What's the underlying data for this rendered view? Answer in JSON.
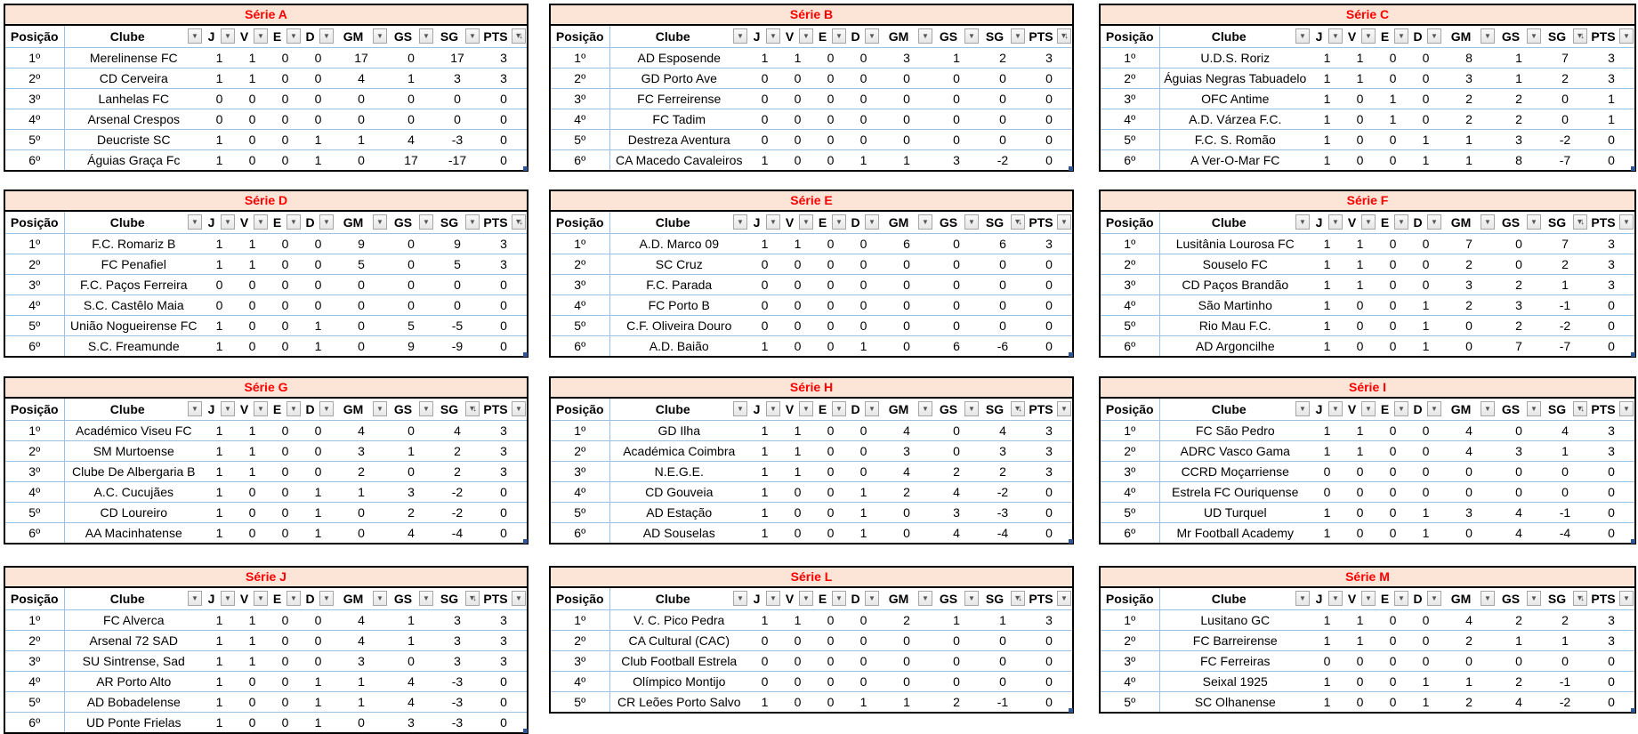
{
  "columns": [
    "Posição",
    "Clube",
    "J",
    "V",
    "E",
    "D",
    "GM",
    "GS",
    "SG",
    "PTS"
  ],
  "colors": {
    "title_bg": "#fce4d6",
    "title_text": "#ff0000",
    "grid": "#9bc2e6"
  },
  "icons": {
    "filter": "dropdown-arrow-icon",
    "sorted": "sort-descending-filter-icon"
  },
  "series": [
    {
      "title": "Série A",
      "sorted_column": "PTS",
      "rows": [
        [
          "1º",
          "Merelinense FC",
          1,
          1,
          0,
          0,
          17,
          0,
          17,
          3
        ],
        [
          "2º",
          "CD Cerveira",
          1,
          1,
          0,
          0,
          4,
          1,
          3,
          3
        ],
        [
          "3º",
          "Lanhelas FC",
          0,
          0,
          0,
          0,
          0,
          0,
          0,
          0
        ],
        [
          "4º",
          "Arsenal Crespos",
          0,
          0,
          0,
          0,
          0,
          0,
          0,
          0
        ],
        [
          "5º",
          "Deucriste SC",
          1,
          0,
          0,
          1,
          1,
          4,
          -3,
          0
        ],
        [
          "6º",
          "Águias Graça Fc",
          1,
          0,
          0,
          1,
          0,
          17,
          -17,
          0
        ]
      ]
    },
    {
      "title": "Série B",
      "sorted_column": "PTS",
      "rows": [
        [
          "1º",
          "AD Esposende",
          1,
          1,
          0,
          0,
          3,
          1,
          2,
          3
        ],
        [
          "2º",
          "GD Porto Ave",
          0,
          0,
          0,
          0,
          0,
          0,
          0,
          0
        ],
        [
          "3º",
          "FC Ferreirense",
          0,
          0,
          0,
          0,
          0,
          0,
          0,
          0
        ],
        [
          "4º",
          "FC Tadim",
          0,
          0,
          0,
          0,
          0,
          0,
          0,
          0
        ],
        [
          "5º",
          "Destreza Aventura",
          0,
          0,
          0,
          0,
          0,
          0,
          0,
          0
        ],
        [
          "6º",
          "CA Macedo Cavaleiros",
          1,
          0,
          0,
          1,
          1,
          3,
          -2,
          0
        ]
      ]
    },
    {
      "title": "Série C",
      "sorted_column": "SG",
      "rows": [
        [
          "1º",
          "U.D.S. Roriz",
          1,
          1,
          0,
          0,
          8,
          1,
          7,
          3
        ],
        [
          "2º",
          "Águias Negras Tabuadelo",
          1,
          1,
          0,
          0,
          3,
          1,
          2,
          3
        ],
        [
          "3º",
          "OFC Antime",
          1,
          0,
          1,
          0,
          2,
          2,
          0,
          1
        ],
        [
          "4º",
          "A.D. Várzea F.C.",
          1,
          0,
          1,
          0,
          2,
          2,
          0,
          1
        ],
        [
          "5º",
          "F.C. S. Romão",
          1,
          0,
          0,
          1,
          1,
          3,
          -2,
          0
        ],
        [
          "6º",
          "A Ver-O-Mar FC",
          1,
          0,
          0,
          1,
          1,
          8,
          -7,
          0
        ]
      ]
    },
    {
      "title": "Série D",
      "sorted_column": "PTS",
      "rows": [
        [
          "1º",
          "F.C. Romariz B",
          1,
          1,
          0,
          0,
          9,
          0,
          9,
          3
        ],
        [
          "2º",
          "FC Penafiel",
          1,
          1,
          0,
          0,
          5,
          0,
          5,
          3
        ],
        [
          "3º",
          "F.C. Paços Ferreira",
          0,
          0,
          0,
          0,
          0,
          0,
          0,
          0
        ],
        [
          "4º",
          "S.C. Castêlo Maia",
          0,
          0,
          0,
          0,
          0,
          0,
          0,
          0
        ],
        [
          "5º",
          "União Nogueirense FC",
          1,
          0,
          0,
          1,
          0,
          5,
          -5,
          0
        ],
        [
          "6º",
          "S.C. Freamunde",
          1,
          0,
          0,
          1,
          0,
          9,
          -9,
          0
        ]
      ]
    },
    {
      "title": "Série E",
      "sorted_column": "SG",
      "rows": [
        [
          "1º",
          "A.D. Marco 09",
          1,
          1,
          0,
          0,
          6,
          0,
          6,
          3
        ],
        [
          "2º",
          "SC Cruz",
          0,
          0,
          0,
          0,
          0,
          0,
          0,
          0
        ],
        [
          "3º",
          "F.C. Parada",
          0,
          0,
          0,
          0,
          0,
          0,
          0,
          0
        ],
        [
          "4º",
          "FC Porto B",
          0,
          0,
          0,
          0,
          0,
          0,
          0,
          0
        ],
        [
          "5º",
          "C.F. Oliveira Douro",
          0,
          0,
          0,
          0,
          0,
          0,
          0,
          0
        ],
        [
          "6º",
          "A.D. Baião",
          1,
          0,
          0,
          1,
          0,
          6,
          -6,
          0
        ]
      ]
    },
    {
      "title": "Série F",
      "sorted_column": "SG",
      "rows": [
        [
          "1º",
          "Lusitânia Lourosa FC",
          1,
          1,
          0,
          0,
          7,
          0,
          7,
          3
        ],
        [
          "2º",
          "Souselo FC",
          1,
          1,
          0,
          0,
          2,
          0,
          2,
          3
        ],
        [
          "3º",
          "CD Paços Brandão",
          1,
          1,
          0,
          0,
          3,
          2,
          1,
          3
        ],
        [
          "4º",
          "São Martinho",
          1,
          0,
          0,
          1,
          2,
          3,
          -1,
          0
        ],
        [
          "5º",
          "Rio Mau F.C.",
          1,
          0,
          0,
          1,
          0,
          2,
          -2,
          0
        ],
        [
          "6º",
          "AD Argoncilhe",
          1,
          0,
          0,
          1,
          0,
          7,
          -7,
          0
        ]
      ]
    },
    {
      "title": "Série G",
      "sorted_column": "SG",
      "rows": [
        [
          "1º",
          "Académico Viseu FC",
          1,
          1,
          0,
          0,
          4,
          0,
          4,
          3
        ],
        [
          "2º",
          "SM Murtoense",
          1,
          1,
          0,
          0,
          3,
          1,
          2,
          3
        ],
        [
          "3º",
          "Clube De Albergaria B",
          1,
          1,
          0,
          0,
          2,
          0,
          2,
          3
        ],
        [
          "4º",
          "A.C. Cucujães",
          1,
          0,
          0,
          1,
          1,
          3,
          -2,
          0
        ],
        [
          "5º",
          "CD Loureiro",
          1,
          0,
          0,
          1,
          0,
          2,
          -2,
          0
        ],
        [
          "6º",
          "AA Macinhatense",
          1,
          0,
          0,
          1,
          0,
          4,
          -4,
          0
        ]
      ]
    },
    {
      "title": "Série H",
      "sorted_column": "SG",
      "rows": [
        [
          "1º",
          "GD Ilha",
          1,
          1,
          0,
          0,
          4,
          0,
          4,
          3
        ],
        [
          "2º",
          "Académica Coimbra",
          1,
          1,
          0,
          0,
          3,
          0,
          3,
          3
        ],
        [
          "3º",
          "N.E.G.E.",
          1,
          1,
          0,
          0,
          4,
          2,
          2,
          3
        ],
        [
          "4º",
          "CD Gouveia",
          1,
          0,
          0,
          1,
          2,
          4,
          -2,
          0
        ],
        [
          "5º",
          "AD Estação",
          1,
          0,
          0,
          1,
          0,
          3,
          -3,
          0
        ],
        [
          "6º",
          "AD Souselas",
          1,
          0,
          0,
          1,
          0,
          4,
          -4,
          0
        ]
      ]
    },
    {
      "title": "Série I",
      "sorted_column": "SG",
      "rows": [
        [
          "1º",
          "FC São Pedro",
          1,
          1,
          0,
          0,
          4,
          0,
          4,
          3
        ],
        [
          "2º",
          "ADRC Vasco Gama",
          1,
          1,
          0,
          0,
          4,
          3,
          1,
          3
        ],
        [
          "3º",
          "CCRD Moçarriense",
          0,
          0,
          0,
          0,
          0,
          0,
          0,
          0
        ],
        [
          "4º",
          "Estrela FC Ouriquense",
          0,
          0,
          0,
          0,
          0,
          0,
          0,
          0
        ],
        [
          "5º",
          "UD Turquel",
          1,
          0,
          0,
          1,
          3,
          4,
          -1,
          0
        ],
        [
          "6º",
          "Mr Football Academy",
          1,
          0,
          0,
          1,
          0,
          4,
          -4,
          0
        ]
      ]
    },
    {
      "title": "Série J",
      "sorted_column": "SG",
      "rows": [
        [
          "1º",
          "FC Alverca",
          1,
          1,
          0,
          0,
          4,
          1,
          3,
          3
        ],
        [
          "2º",
          "Arsenal 72 SAD",
          1,
          1,
          0,
          0,
          4,
          1,
          3,
          3
        ],
        [
          "3º",
          "SU Sintrense, Sad",
          1,
          1,
          0,
          0,
          3,
          0,
          3,
          3
        ],
        [
          "4º",
          "AR Porto Alto",
          1,
          0,
          0,
          1,
          1,
          4,
          -3,
          0
        ],
        [
          "5º",
          "AD Bobadelense",
          1,
          0,
          0,
          1,
          1,
          4,
          -3,
          0
        ],
        [
          "6º",
          "UD Ponte Frielas",
          1,
          0,
          0,
          1,
          0,
          3,
          -3,
          0
        ]
      ]
    },
    {
      "title": "Série L",
      "sorted_column": "SG",
      "rows": [
        [
          "1º",
          "V. C. Pico Pedra",
          1,
          1,
          0,
          0,
          2,
          1,
          1,
          3
        ],
        [
          "2º",
          "CA Cultural (CAC)",
          0,
          0,
          0,
          0,
          0,
          0,
          0,
          0
        ],
        [
          "3º",
          "Club Football Estrela",
          0,
          0,
          0,
          0,
          0,
          0,
          0,
          0
        ],
        [
          "4º",
          "Olímpico Montijo",
          0,
          0,
          0,
          0,
          0,
          0,
          0,
          0
        ],
        [
          "5º",
          "CR Leões Porto Salvo",
          1,
          0,
          0,
          1,
          1,
          2,
          -1,
          0
        ]
      ]
    },
    {
      "title": "Série M",
      "sorted_column": "SG",
      "rows": [
        [
          "1º",
          "Lusitano GC",
          1,
          1,
          0,
          0,
          4,
          2,
          2,
          3
        ],
        [
          "2º",
          "FC Barreirense",
          1,
          1,
          0,
          0,
          2,
          1,
          1,
          3
        ],
        [
          "3º",
          "FC Ferreiras",
          0,
          0,
          0,
          0,
          0,
          0,
          0,
          0
        ],
        [
          "4º",
          "Seixal 1925",
          1,
          0,
          0,
          1,
          1,
          2,
          -1,
          0
        ],
        [
          "5º",
          "SC Olhanense",
          1,
          0,
          0,
          1,
          2,
          4,
          -2,
          0
        ]
      ]
    }
  ]
}
